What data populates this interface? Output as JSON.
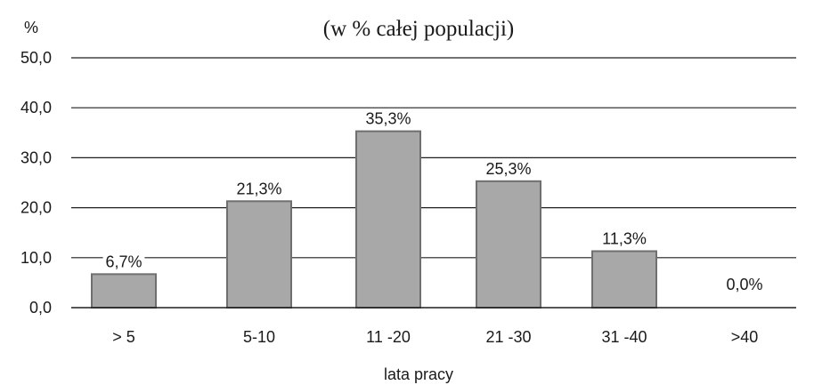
{
  "chart_data": {
    "type": "bar",
    "title": "(w % całej populacji)",
    "ylabel": "%",
    "xlabel": "lata pracy",
    "categories": [
      "> 5",
      "5-10",
      "11 -20",
      "21 -30",
      "31 -40",
      ">40"
    ],
    "values": [
      6.7,
      21.3,
      35.3,
      25.3,
      11.3,
      0.0
    ],
    "data_labels": [
      "6,7%",
      "21,3%",
      "35,3%",
      "25,3%",
      "11,3%",
      "0,0%"
    ],
    "y_ticks": [
      "0,0",
      "10,0",
      "20,0",
      "30,0",
      "40,0",
      "50,0"
    ],
    "ylim": [
      0,
      50
    ],
    "grid": true,
    "legend": "none",
    "colors": {
      "bar_fill": "#a8a8a8",
      "bar_edge": "#6f6f6f",
      "grid": "#1f1f1f",
      "text": "#1a1a1a"
    }
  }
}
